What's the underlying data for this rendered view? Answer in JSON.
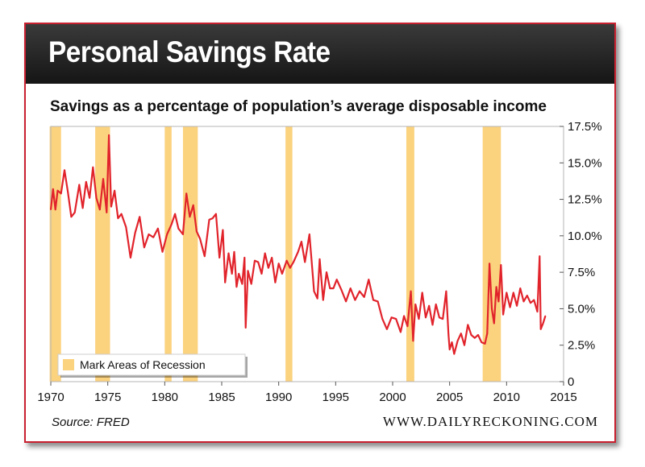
{
  "header": {
    "title": "Personal Savings Rate",
    "subtitle": "Savings as a percentage of population’s average disposable income"
  },
  "footer": {
    "source": "Source: FRED",
    "website": "WWW.DAILYRECKONING.COM"
  },
  "colors": {
    "line": "#e1232b",
    "recession": "#fbd27e",
    "frame": "#c8202f",
    "banner": "#1c1c1c"
  },
  "chart_data": {
    "type": "line",
    "title": "Personal Savings Rate",
    "subtitle": "Savings as a percentage of population’s average disposable income",
    "xlabel": "",
    "ylabel": "",
    "xlim": [
      1970,
      2015
    ],
    "ylim": [
      0,
      17.5
    ],
    "x_ticks": [
      1970,
      1975,
      1980,
      1985,
      1990,
      1995,
      2000,
      2005,
      2010,
      2015
    ],
    "x_tick_labels": [
      "1970",
      "1975",
      "1980",
      "1985",
      "1990",
      "1995",
      "2000",
      "2005",
      "2010",
      "2015"
    ],
    "y_ticks": [
      0,
      2.5,
      5,
      7.5,
      10,
      12.5,
      15,
      17.5
    ],
    "y_tick_labels": [
      "0",
      "2.5%",
      "5.0%",
      "7.5%",
      "10.0%",
      "12.5%",
      "15.0%",
      "17.5%"
    ],
    "grid": false,
    "legend": {
      "label": "Mark Areas of Recession",
      "placement": "bottom-left"
    },
    "recessions": [
      [
        1969.9,
        1970.9
      ],
      [
        1973.9,
        1975.2
      ],
      [
        1980.0,
        1980.6
      ],
      [
        1981.6,
        1982.9
      ],
      [
        1990.6,
        1991.2
      ],
      [
        2001.2,
        2001.9
      ],
      [
        2007.9,
        2009.5
      ]
    ],
    "series": [
      {
        "name": "Personal Savings Rate",
        "x": [
          1970.0,
          1970.2,
          1970.4,
          1970.6,
          1970.9,
          1971.2,
          1971.5,
          1971.8,
          1972.1,
          1972.5,
          1972.8,
          1973.1,
          1973.4,
          1973.7,
          1974.0,
          1974.3,
          1974.6,
          1974.9,
          1975.1,
          1975.3,
          1975.6,
          1975.9,
          1976.2,
          1976.6,
          1977.0,
          1977.4,
          1977.8,
          1978.2,
          1978.6,
          1979.0,
          1979.4,
          1979.8,
          1980.2,
          1980.6,
          1980.9,
          1981.2,
          1981.6,
          1981.9,
          1982.2,
          1982.5,
          1982.8,
          1983.1,
          1983.5,
          1983.9,
          1984.2,
          1984.5,
          1984.8,
          1985.1,
          1985.3,
          1985.6,
          1985.9,
          1986.1,
          1986.3,
          1986.5,
          1986.8,
          1987.0,
          1987.1,
          1987.3,
          1987.6,
          1987.9,
          1988.2,
          1988.5,
          1988.8,
          1989.1,
          1989.4,
          1989.7,
          1990.0,
          1990.3,
          1990.7,
          1991.0,
          1991.3,
          1991.7,
          1992.0,
          1992.3,
          1992.7,
          1993.0,
          1993.1,
          1993.4,
          1993.6,
          1993.9,
          1994.2,
          1994.5,
          1994.8,
          1995.1,
          1995.5,
          1995.9,
          1996.3,
          1996.7,
          1997.1,
          1997.5,
          1997.9,
          1998.3,
          1998.7,
          1999.1,
          1999.5,
          1999.9,
          2000.3,
          2000.7,
          2001.0,
          2001.3,
          2001.6,
          2001.8,
          2002.0,
          2002.3,
          2002.6,
          2002.9,
          2003.2,
          2003.5,
          2003.8,
          2004.1,
          2004.4,
          2004.7,
          2004.9,
          2005.0,
          2005.2,
          2005.4,
          2005.7,
          2006.0,
          2006.3,
          2006.6,
          2006.9,
          2007.2,
          2007.5,
          2007.8,
          2008.1,
          2008.3,
          2008.5,
          2008.7,
          2008.9,
          2009.1,
          2009.3,
          2009.5,
          2009.7,
          2010.0,
          2010.3,
          2010.6,
          2010.9,
          2011.2,
          2011.5,
          2011.8,
          2012.1,
          2012.4,
          2012.7,
          2012.9,
          2013.0,
          2013.2,
          2013.4
        ],
        "y": [
          11.8,
          13.2,
          11.8,
          13.1,
          12.9,
          14.5,
          13.0,
          11.3,
          11.6,
          13.5,
          11.9,
          13.7,
          12.6,
          14.7,
          12.6,
          11.8,
          13.9,
          11.6,
          16.9,
          12.0,
          13.1,
          11.2,
          11.5,
          10.6,
          8.5,
          10.2,
          11.3,
          9.2,
          10.1,
          9.9,
          10.5,
          8.9,
          10.1,
          10.8,
          11.5,
          10.5,
          10.1,
          12.9,
          11.3,
          12.1,
          10.3,
          9.8,
          8.6,
          11.1,
          11.2,
          11.5,
          8.5,
          10.4,
          6.8,
          8.8,
          7.4,
          8.9,
          6.5,
          7.4,
          6.7,
          8.5,
          3.7,
          7.6,
          6.7,
          8.3,
          8.2,
          7.4,
          8.8,
          7.8,
          8.5,
          6.8,
          8.1,
          7.4,
          8.3,
          7.8,
          8.2,
          8.9,
          9.6,
          8.2,
          10.1,
          7.2,
          6.2,
          5.7,
          8.4,
          5.6,
          7.5,
          6.4,
          6.4,
          7.0,
          6.3,
          5.5,
          6.4,
          5.6,
          6.2,
          5.8,
          7.0,
          5.6,
          5.5,
          4.3,
          3.6,
          4.4,
          4.3,
          3.4,
          4.5,
          3.8,
          6.2,
          2.8,
          5.3,
          4.3,
          6.1,
          4.4,
          5.2,
          3.9,
          5.3,
          4.4,
          4.3,
          6.2,
          3.2,
          2.2,
          2.7,
          1.9,
          2.8,
          3.3,
          2.5,
          3.9,
          3.2,
          3.0,
          3.2,
          2.7,
          2.6,
          3.3,
          8.1,
          5.0,
          4.0,
          6.5,
          5.5,
          8.0,
          4.6,
          6.1,
          5.1,
          6.1,
          5.2,
          6.4,
          5.5,
          5.9,
          5.4,
          5.6,
          4.8,
          8.6,
          3.6,
          4.0,
          4.5
        ]
      }
    ]
  }
}
